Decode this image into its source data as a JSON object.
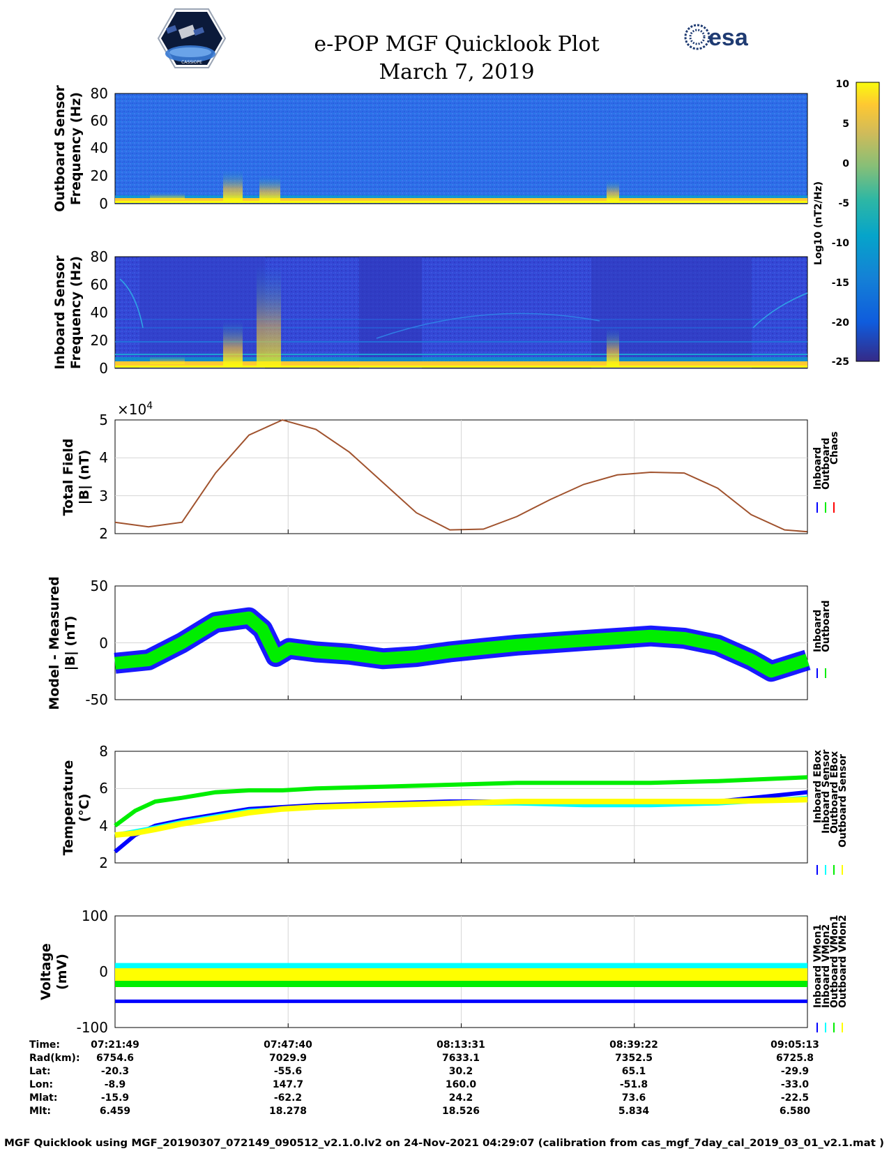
{
  "header": {
    "title_line1": "e-POP MGF Quicklook Plot",
    "title_line2": "March 7, 2019",
    "logo_left": "cassiope-mission-logo",
    "logo_right_text": "esa"
  },
  "colorbar": {
    "ticks": [
      "10",
      "5",
      "0",
      "-5",
      "-10",
      "-15",
      "-20",
      "-25"
    ],
    "label": "Log10 (nT2/Hz)"
  },
  "colors": {
    "inboard": "#0000ff",
    "outboard": "#00ee00",
    "chaos": "#ff0000",
    "cyan": "#00ffff",
    "yellow": "#ffff00",
    "spec_bg_outboard": "#2f6ee8",
    "spec_bg_inboard": "#3548d8"
  },
  "chart_data": [
    {
      "type": "heatmap",
      "name": "outboard_spectrogram",
      "ylabel_line1": "Outboard Sensor",
      "ylabel_line2": "Frequency (Hz)",
      "yticks": [
        "80",
        "60",
        "40",
        "20",
        "0"
      ],
      "ylim": [
        0,
        80
      ],
      "clim": [
        -25,
        10
      ]
    },
    {
      "type": "heatmap",
      "name": "inboard_spectrogram",
      "ylabel_line1": "Inboard Sensor",
      "ylabel_line2": "Frequency (Hz)",
      "yticks": [
        "80",
        "60",
        "40",
        "20",
        "0"
      ],
      "ylim": [
        0,
        80
      ],
      "clim": [
        -25,
        10
      ]
    },
    {
      "type": "line",
      "name": "total_field",
      "ylabel_line1": "Total Field",
      "ylabel_line2": "|B| (nT)",
      "exponent_label": "×10",
      "exponent_power": "4",
      "yticks": [
        "5",
        "4",
        "3",
        "2"
      ],
      "ylim": [
        2,
        5
      ],
      "x_minutes": [
        0,
        5,
        10,
        15,
        20,
        25,
        30,
        35,
        40,
        45,
        50,
        55,
        60,
        65,
        70,
        75,
        80,
        85,
        90,
        95,
        100,
        103.4
      ],
      "y": [
        2.3,
        2.18,
        2.3,
        3.6,
        4.6,
        5.0,
        4.75,
        4.15,
        3.35,
        2.55,
        2.1,
        2.12,
        2.45,
        2.9,
        3.3,
        3.55,
        3.62,
        3.6,
        3.2,
        2.5,
        2.1,
        2.05
      ],
      "legend": [
        "Inboard",
        "Outboard",
        "Chaos"
      ]
    },
    {
      "type": "line",
      "name": "model_minus_measured",
      "ylabel_line1": "Model - Measured",
      "ylabel_line2": "|B| (nT)",
      "yticks": [
        "50",
        "0",
        "-50"
      ],
      "ylim": [
        -50,
        50
      ],
      "x_minutes": [
        0,
        5,
        10,
        15,
        20,
        22,
        24,
        26,
        30,
        35,
        40,
        45,
        50,
        55,
        60,
        65,
        70,
        75,
        80,
        85,
        90,
        95,
        98,
        103.4
      ],
      "y": [
        -18,
        -15,
        0,
        18,
        22,
        12,
        -12,
        -5,
        -8,
        -10,
        -14,
        -12,
        -8,
        -5,
        -2,
        0,
        2,
        4,
        6,
        4,
        -2,
        -15,
        -25,
        -15
      ],
      "legend": [
        "Inboard",
        "Outboard"
      ]
    },
    {
      "type": "line",
      "name": "temperature",
      "ylabel_line1": "Temperature",
      "ylabel_line2": "(°C)",
      "yticks": [
        "8",
        "6",
        "4",
        "2"
      ],
      "ylim": [
        2,
        8
      ],
      "x_minutes": [
        0,
        3,
        6,
        10,
        15,
        20,
        25,
        30,
        40,
        50,
        60,
        70,
        80,
        90,
        103.4
      ],
      "series": [
        {
          "name": "Inboard EBox",
          "values": [
            2.6,
            3.5,
            4.0,
            4.3,
            4.6,
            4.9,
            5.0,
            5.1,
            5.2,
            5.3,
            5.3,
            5.3,
            5.3,
            5.3,
            5.8
          ]
        },
        {
          "name": "Inboard Sensor",
          "values": [
            3.5,
            3.7,
            3.9,
            4.2,
            4.5,
            4.8,
            4.9,
            5.0,
            5.1,
            5.2,
            5.2,
            5.1,
            5.1,
            5.2,
            5.5
          ]
        },
        {
          "name": "Outboard EBox",
          "values": [
            4.0,
            4.8,
            5.3,
            5.5,
            5.8,
            5.9,
            5.9,
            6.0,
            6.1,
            6.2,
            6.3,
            6.3,
            6.3,
            6.4,
            6.6
          ]
        },
        {
          "name": "Outboard Sensor",
          "values": [
            3.5,
            3.6,
            3.8,
            4.1,
            4.4,
            4.7,
            4.9,
            5.0,
            5.1,
            5.2,
            5.3,
            5.3,
            5.3,
            5.3,
            5.4
          ]
        }
      ],
      "legend": [
        "Inboard EBox",
        "Inboard Sensor",
        "Outboard EBox",
        "Outboard Sensor"
      ]
    },
    {
      "type": "line",
      "name": "voltage",
      "ylabel_line1": "Voltage",
      "ylabel_line2": "(mV)",
      "yticks": [
        "100",
        "0",
        "-100"
      ],
      "ylim": [
        -100,
        100
      ],
      "x_minutes": [
        0,
        103.4
      ],
      "series": [
        {
          "name": "Inboard VMon1",
          "values": [
            -53,
            -53
          ]
        },
        {
          "name": "Inboard VMon2",
          "values": [
            10,
            10
          ]
        },
        {
          "name": "Outboard VMon1",
          "values": [
            -15,
            -15
          ]
        },
        {
          "name": "Outboard VMon2",
          "values": [
            -5,
            -5
          ]
        }
      ],
      "legend": [
        "Inboard VMon1",
        "Inboard VMon2",
        "Outboard VMon1",
        "Outboard VMon2"
      ]
    }
  ],
  "info_table": {
    "row_labels": [
      "Time:",
      "Rad(km):",
      "Lat:",
      "Lon:",
      "Mlat:",
      "Mlt:"
    ],
    "columns": [
      [
        "07:21:49",
        "6754.6",
        "-20.3",
        "-8.9",
        "-15.9",
        "6.459"
      ],
      [
        "07:47:40",
        "7029.9",
        "-55.6",
        "147.7",
        "-62.2",
        "18.278"
      ],
      [
        "08:13:31",
        "7633.1",
        "30.2",
        "160.0",
        "24.2",
        "18.526"
      ],
      [
        "08:39:22",
        "7352.5",
        "65.1",
        "-51.8",
        "73.6",
        "5.834"
      ],
      [
        "09:05:13",
        "6725.8",
        "-29.9",
        "-33.0",
        "-22.5",
        "6.580"
      ]
    ]
  },
  "footer": "MGF Quicklook using MGF_20190307_072149_090512_v2.1.0.lv2 on 24-Nov-2021 04:29:07 (calibration from cas_mgf_7day_cal_2019_03_01_v2.1.mat )"
}
